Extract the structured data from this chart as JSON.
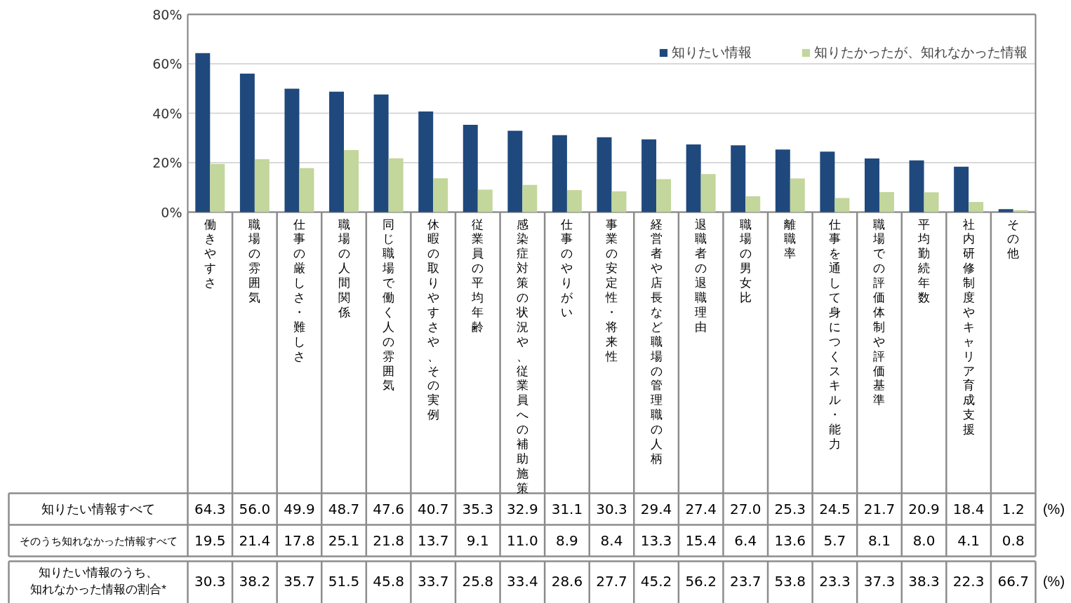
{
  "chart_data": {
    "type": "bar",
    "categories": [
      "働きやすさ",
      "職場の雰囲気",
      "仕事の厳しさ・難しさ",
      "職場の人間関係",
      "同じ職場で働く人の雰囲気",
      "休暇の取りやすさや、その実例",
      "従業員の平均年齢",
      "感染症対策の状況や、従業員への補助施策",
      "仕事のやりがい",
      "事業の安定性・将来性",
      "経営者や店長など職場の管理職の人柄",
      "退職者の退職理由",
      "職場の男女比",
      "離職率",
      "仕事を通して身につくスキル・能力",
      "職場での評価体制や評価基準",
      "平均勤続年数",
      "社内研修制度やキャリア育成支援",
      "その他"
    ],
    "series": [
      {
        "name": "知りたい情報",
        "color": "#1f497d",
        "values": [
          64.3,
          56.0,
          49.9,
          48.7,
          47.6,
          40.7,
          35.3,
          32.9,
          31.1,
          30.3,
          29.4,
          27.4,
          27.0,
          25.3,
          24.5,
          21.7,
          20.9,
          18.4,
          1.2
        ],
        "value_labels": [
          "64.3",
          "56.0",
          "49.9",
          "48.7",
          "47.6",
          "40.7",
          "35.3",
          "32.9",
          "31.1",
          "30.3",
          "29.4",
          "27.4",
          "27.0",
          "25.3",
          "24.5",
          "21.7",
          "20.9",
          "18.4",
          "1.2"
        ]
      },
      {
        "name": "知りたかったが、知れなかった情報",
        "color": "#c3d69b",
        "values": [
          19.5,
          21.4,
          17.8,
          25.1,
          21.8,
          13.7,
          9.1,
          11.0,
          8.9,
          8.4,
          13.3,
          15.4,
          6.4,
          13.6,
          5.7,
          8.1,
          8.0,
          4.1,
          0.8
        ],
        "value_labels": [
          "19.5",
          "21.4",
          "17.8",
          "25.1",
          "21.8",
          "13.7",
          "9.1",
          "11.0",
          "8.9",
          "8.4",
          "13.3",
          "15.4",
          "6.4",
          "13.6",
          "5.7",
          "8.1",
          "8.0",
          "4.1",
          "0.8"
        ]
      }
    ],
    "ylim": [
      0,
      80
    ],
    "yticks": [
      {
        "value": 0,
        "label": "0%"
      },
      {
        "value": 20,
        "label": "20%"
      },
      {
        "value": 40,
        "label": "40%"
      },
      {
        "value": 60,
        "label": "60%"
      },
      {
        "value": 80,
        "label": "80%"
      }
    ],
    "grid": "y",
    "legend": "top right",
    "annotations": [
      "知りたい情報すべて",
      "そのうち知れなかった情報すべて",
      "知りたい情報のうち、",
      "知れなかった情報の割合*",
      "(%)",
      "(%)",
      "30.3",
      "38.2",
      "35.7",
      "51.5",
      "45.8",
      "33.7",
      "25.8",
      "33.4",
      "28.6",
      "27.7",
      "45.2",
      "56.2",
      "23.7",
      "53.8",
      "23.3",
      "37.3",
      "38.3",
      "22.3",
      "66.7"
    ]
  }
}
